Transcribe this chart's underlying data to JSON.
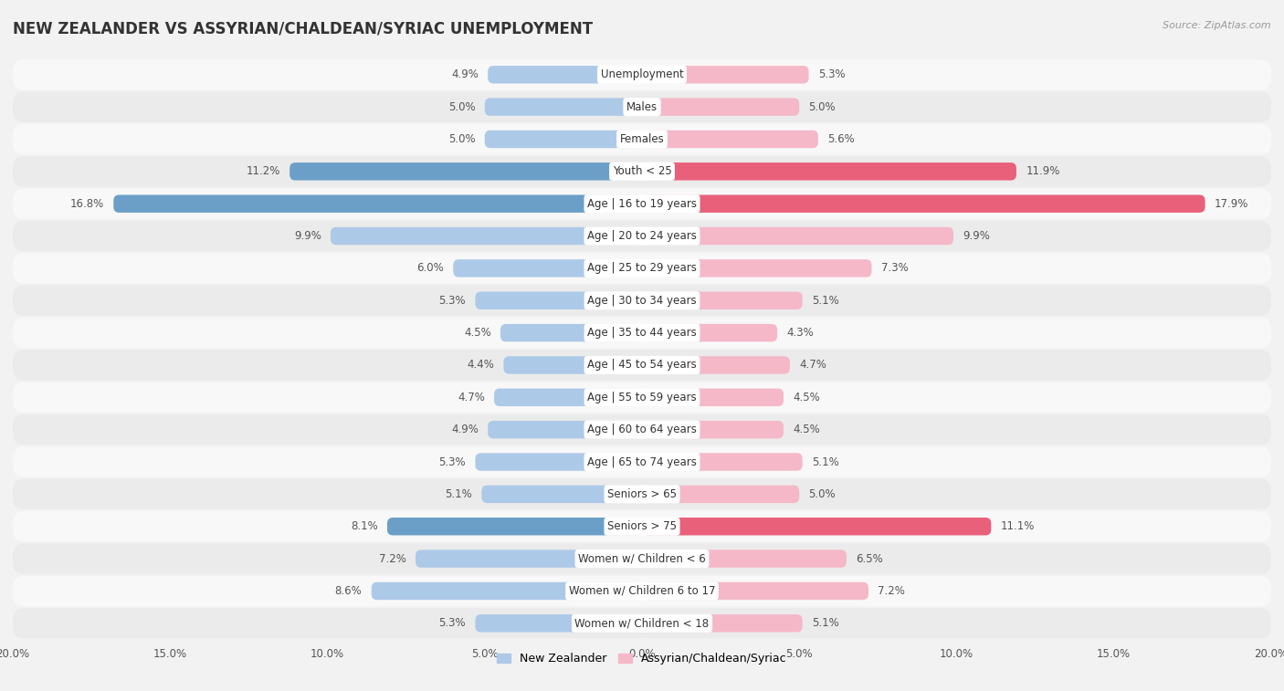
{
  "title": "NEW ZEALANDER VS ASSYRIAN/CHALDEAN/SYRIAC UNEMPLOYMENT",
  "source": "Source: ZipAtlas.com",
  "categories": [
    "Unemployment",
    "Males",
    "Females",
    "Youth < 25",
    "Age | 16 to 19 years",
    "Age | 20 to 24 years",
    "Age | 25 to 29 years",
    "Age | 30 to 34 years",
    "Age | 35 to 44 years",
    "Age | 45 to 54 years",
    "Age | 55 to 59 years",
    "Age | 60 to 64 years",
    "Age | 65 to 74 years",
    "Seniors > 65",
    "Seniors > 75",
    "Women w/ Children < 6",
    "Women w/ Children 6 to 17",
    "Women w/ Children < 18"
  ],
  "left_values": [
    4.9,
    5.0,
    5.0,
    11.2,
    16.8,
    9.9,
    6.0,
    5.3,
    4.5,
    4.4,
    4.7,
    4.9,
    5.3,
    5.1,
    8.1,
    7.2,
    8.6,
    5.3
  ],
  "right_values": [
    5.3,
    5.0,
    5.6,
    11.9,
    17.9,
    9.9,
    7.3,
    5.1,
    4.3,
    4.7,
    4.5,
    4.5,
    5.1,
    5.0,
    11.1,
    6.5,
    7.2,
    5.1
  ],
  "left_color_normal": "#adc9e8",
  "right_color_normal": "#f5b8c8",
  "left_color_highlight": "#6b9fc8",
  "right_color_highlight": "#e8607a",
  "axis_max": 20.0,
  "bg_color": "#f2f2f2",
  "row_bg_colors": [
    "#f8f8f8",
    "#ebebeb"
  ],
  "text_color": "#555555",
  "label_color": "#333333",
  "legend_left": "New Zealander",
  "legend_right": "Assyrian/Chaldean/Syriac",
  "highlight_rows": [
    3,
    4,
    14
  ]
}
